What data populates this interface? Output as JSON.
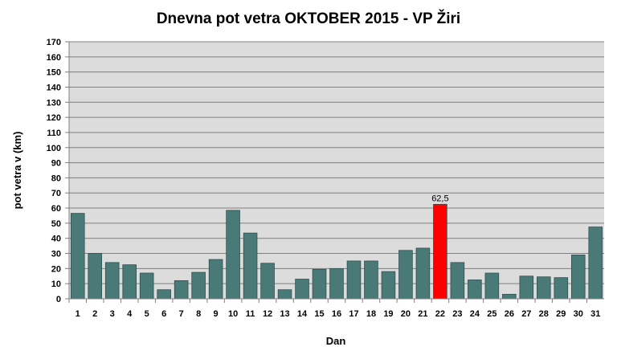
{
  "chart_data": {
    "type": "bar",
    "title": "Dnevna pot vetra OKTOBER  2015 - VP Žiri",
    "xlabel": "Dan",
    "ylabel": "pot vetra  v (km)",
    "ylim": [
      0,
      170
    ],
    "ytick_step": 10,
    "grid": true,
    "legend": "none",
    "categories": [
      "1",
      "2",
      "3",
      "4",
      "5",
      "6",
      "7",
      "8",
      "9",
      "10",
      "11",
      "12",
      "13",
      "14",
      "15",
      "16",
      "17",
      "18",
      "19",
      "20",
      "21",
      "22",
      "23",
      "24",
      "25",
      "26",
      "27",
      "28",
      "29",
      "30",
      "31"
    ],
    "values": [
      56.5,
      30,
      24,
      22.5,
      17,
      6,
      12,
      17.5,
      26,
      58.5,
      43.5,
      23.5,
      6,
      13,
      19.5,
      20,
      25,
      25,
      18,
      32,
      33.5,
      62.5,
      24,
      12.5,
      17,
      3,
      15,
      14.5,
      14,
      29,
      47.5
    ],
    "colors": {
      "default": "#4a7a77",
      "highlight": "#ff0000"
    },
    "highlight_index": 21,
    "data_labels": [
      {
        "index": 21,
        "text": "62,5"
      }
    ]
  }
}
